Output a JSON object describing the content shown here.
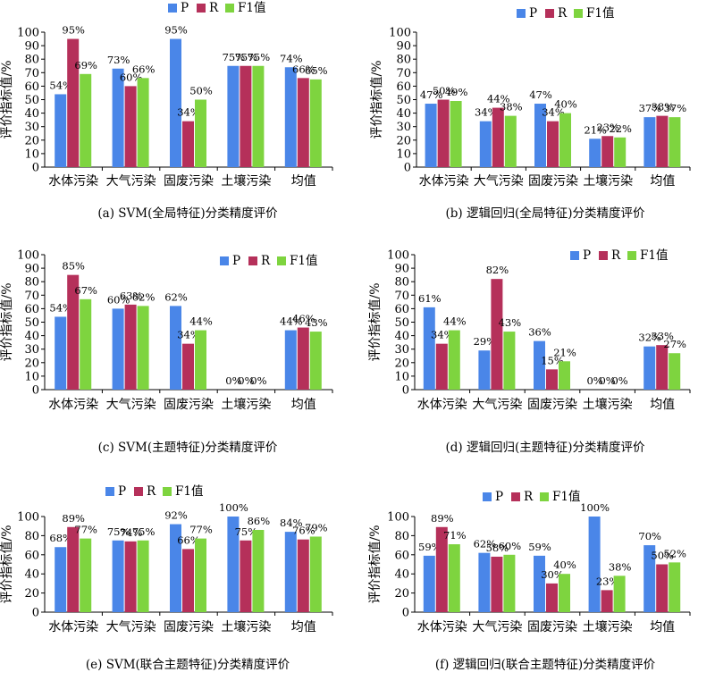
{
  "colors": {
    "P": "#4a86e8",
    "R": "#b5305a",
    "F1": "#7ed43f"
  },
  "chart_data": [
    {
      "type": "bar",
      "caption": "(a) SVM(全局特征)分类精度评价",
      "ylabel": "评价指标值/%",
      "ylim": [
        0,
        100
      ],
      "yticks": [
        0,
        10,
        20,
        30,
        40,
        50,
        60,
        70,
        80,
        90,
        100
      ],
      "categories": [
        "水体污染",
        "大气污染",
        "固废污染",
        "土壤污染",
        "均值"
      ],
      "legend_position": "top-right",
      "series": [
        {
          "name": "P",
          "values": [
            54,
            73,
            95,
            75,
            74
          ],
          "labels": [
            "54%",
            "73%",
            "95%",
            "75%",
            "74%"
          ]
        },
        {
          "name": "R",
          "values": [
            95,
            60,
            34,
            75,
            66
          ],
          "labels": [
            "95%",
            "60%",
            "34%",
            "75%",
            "66%"
          ]
        },
        {
          "name": "F1值",
          "values": [
            69,
            66,
            50,
            75,
            65
          ],
          "labels": [
            "69%",
            "66%",
            "50%",
            "75%",
            "65%"
          ]
        }
      ]
    },
    {
      "type": "bar",
      "caption": "(b) 逻辑回归(全局特征)分类精度评价",
      "ylabel": "评价指标值/%",
      "ylim": [
        0,
        100
      ],
      "yticks": [
        0,
        10,
        20,
        30,
        40,
        50,
        60,
        70,
        80,
        90,
        100
      ],
      "categories": [
        "水体污染",
        "大气污染",
        "固废污染",
        "土壤污染",
        "均值"
      ],
      "legend_position": "top-right",
      "series": [
        {
          "name": "P",
          "values": [
            47,
            34,
            47,
            21,
            37
          ],
          "labels": [
            "47%",
            "34%",
            "47%",
            "21%",
            "37%"
          ]
        },
        {
          "name": "R",
          "values": [
            50,
            44,
            34,
            23,
            38
          ],
          "labels": [
            "50%",
            "44%",
            "34%",
            "23%",
            "38%"
          ]
        },
        {
          "name": "F1值",
          "values": [
            49,
            38,
            40,
            22,
            37
          ],
          "labels": [
            "49%",
            "38%",
            "40%",
            "22%",
            "37%"
          ]
        }
      ]
    },
    {
      "type": "bar",
      "caption": "(c) SVM(主题特征)分类精度评价",
      "ylabel": "评价指标值/%",
      "ylim": [
        0,
        100
      ],
      "yticks": [
        0,
        10,
        20,
        30,
        40,
        50,
        60,
        70,
        80,
        90,
        100
      ],
      "categories": [
        "水体污染",
        "大气污染",
        "固废污染",
        "土壤污染",
        "均值"
      ],
      "legend_position": "top-right",
      "series": [
        {
          "name": "P",
          "values": [
            54,
            60,
            62,
            0,
            44
          ],
          "labels": [
            "54%",
            "60%",
            "62%",
            "0%",
            "44%"
          ]
        },
        {
          "name": "R",
          "values": [
            85,
            63,
            34,
            0,
            46
          ],
          "labels": [
            "85%",
            "63%",
            "34%",
            "0%",
            "46%"
          ]
        },
        {
          "name": "F1值",
          "values": [
            67,
            62,
            44,
            0,
            43
          ],
          "labels": [
            "67%",
            "62%",
            "44%",
            "0%",
            "43%"
          ]
        }
      ]
    },
    {
      "type": "bar",
      "caption": "(d) 逻辑回归(主题特征)分类精度评价",
      "ylabel": "评价指标值/%",
      "ylim": [
        0,
        100
      ],
      "yticks": [
        0,
        10,
        20,
        30,
        40,
        50,
        60,
        70,
        80,
        90,
        100
      ],
      "categories": [
        "水体污染",
        "大气污染",
        "固废污染",
        "土壤污染",
        "均值"
      ],
      "legend_position": "top-right",
      "series": [
        {
          "name": "P",
          "values": [
            61,
            29,
            36,
            0,
            32
          ],
          "labels": [
            "61%",
            "29%",
            "36%",
            "0%",
            "32%"
          ]
        },
        {
          "name": "R",
          "values": [
            34,
            82,
            15,
            0,
            33
          ],
          "labels": [
            "34%",
            "82%",
            "15%",
            "0%",
            "33%"
          ]
        },
        {
          "name": "F1值",
          "values": [
            44,
            43,
            21,
            0,
            27
          ],
          "labels": [
            "44%",
            "43%",
            "21%",
            "0%",
            "27%"
          ]
        }
      ]
    },
    {
      "type": "bar",
      "caption": "(e) SVM(联合主题特征)分类精度评价",
      "ylabel": "评价指标值/%",
      "ylim": [
        0,
        100
      ],
      "yticks": [
        0,
        20,
        40,
        60,
        80,
        100
      ],
      "categories": [
        "水体污染",
        "大气污染",
        "固废污染",
        "土壤污染",
        "均值"
      ],
      "legend_position": "top-center",
      "series": [
        {
          "name": "P",
          "values": [
            68,
            75,
            92,
            100,
            84
          ],
          "labels": [
            "68%",
            "75%",
            "92%",
            "100%",
            "84%"
          ]
        },
        {
          "name": "R",
          "values": [
            89,
            74,
            66,
            75,
            76
          ],
          "labels": [
            "89%",
            "74%",
            "66%",
            "75%",
            "76%"
          ]
        },
        {
          "name": "F1值",
          "values": [
            77,
            75,
            77,
            86,
            79
          ],
          "labels": [
            "77%",
            "75%",
            "77%",
            "86%",
            "79%"
          ]
        }
      ]
    },
    {
      "type": "bar",
      "caption": "(f) 逻辑回归(联合主题特征)分类精度评价",
      "ylabel": "评价指标值/%",
      "ylim": [
        0,
        100
      ],
      "yticks": [
        0,
        20,
        40,
        60,
        80,
        100
      ],
      "categories": [
        "水体污染",
        "大气污染",
        "固废污染",
        "土壤污染",
        "均值"
      ],
      "legend_position": "top-center",
      "series": [
        {
          "name": "P",
          "values": [
            59,
            62,
            59,
            100,
            70
          ],
          "labels": [
            "59%",
            "62%",
            "59%",
            "100%",
            "70%"
          ]
        },
        {
          "name": "R",
          "values": [
            89,
            58,
            30,
            23,
            50
          ],
          "labels": [
            "89%",
            "58%",
            "30%",
            "23%",
            "50%"
          ]
        },
        {
          "name": "F1值",
          "values": [
            71,
            60,
            40,
            38,
            52
          ],
          "labels": [
            "71%",
            "60%",
            "40%",
            "38%",
            "52%"
          ]
        }
      ]
    }
  ]
}
